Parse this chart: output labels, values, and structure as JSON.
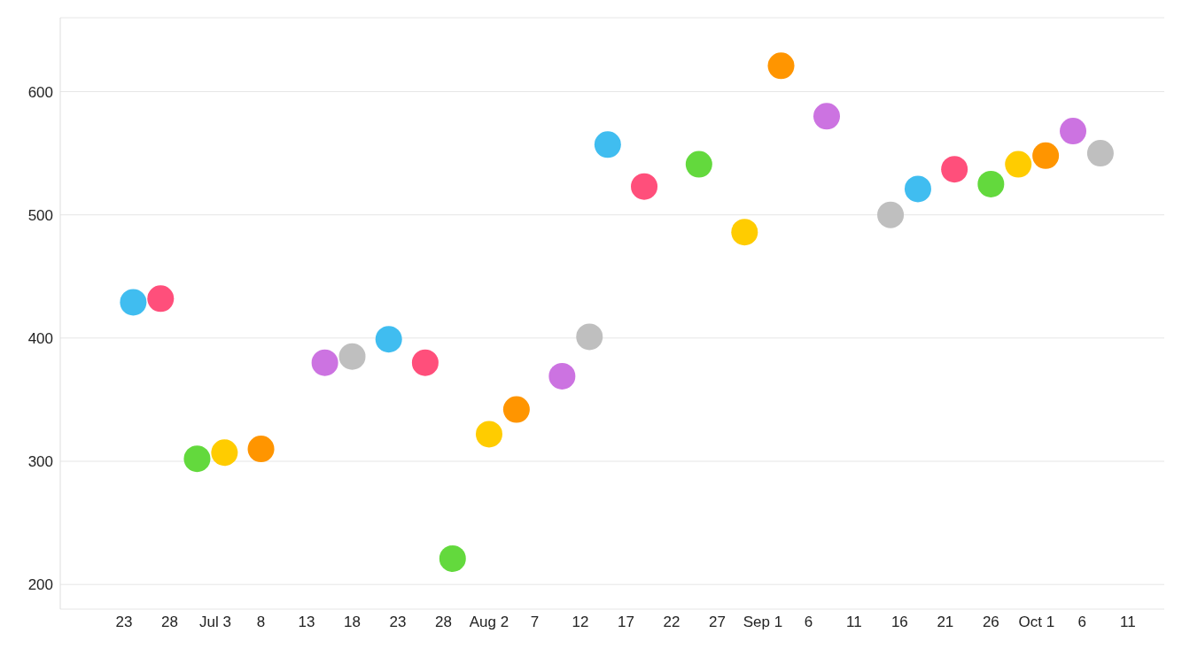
{
  "chart_data": {
    "type": "scatter",
    "marker": "circle",
    "grid": "y",
    "x": [
      "--06-24",
      "--06-27",
      "--07-01",
      "--07-04",
      "--07-08",
      "--07-15",
      "--07-18",
      "--07-22",
      "--07-26",
      "--07-29",
      "--08-02",
      "--08-05",
      "--08-10",
      "--08-13",
      "--08-15",
      "--08-19",
      "--08-25",
      "--08-30",
      "--09-03",
      "--09-08",
      "--09-15",
      "--09-18",
      "--09-22",
      "--09-26",
      "--09-29",
      "--10-02",
      "--10-05",
      "--10-08"
    ],
    "values": [
      429,
      432,
      302,
      307,
      310,
      380,
      385,
      399,
      380,
      221,
      322,
      342,
      369,
      401,
      557,
      523,
      541,
      486,
      621,
      580,
      500,
      521,
      537,
      525,
      541,
      548,
      568,
      550
    ],
    "colors": [
      "#40bdf0",
      "#ff4f7b",
      "#63d93d",
      "#ffcc00",
      "#ff9500",
      "#cc73e1",
      "#bfbfbf",
      "#40bdf0",
      "#ff4f7b",
      "#63d93d",
      "#ffcc00",
      "#ff9500",
      "#cc73e1",
      "#bfbfbf",
      "#40bdf0",
      "#ff4f7b",
      "#63d93d",
      "#ffcc00",
      "#ff9500",
      "#cc73e1",
      "#bfbfbf",
      "#40bdf0",
      "#ff4f7b",
      "#63d93d",
      "#ffcc00",
      "#ff9500",
      "#cc73e1",
      "#bfbfbf"
    ],
    "xlim": [
      "--06-16",
      "--10-15"
    ],
    "xticks": [
      {
        "value": "--06-23",
        "label": "23"
      },
      {
        "value": "--06-28",
        "label": "28"
      },
      {
        "value": "--07-03",
        "label": "Jul 3"
      },
      {
        "value": "--07-08",
        "label": "8"
      },
      {
        "value": "--07-13",
        "label": "13"
      },
      {
        "value": "--07-18",
        "label": "18"
      },
      {
        "value": "--07-23",
        "label": "23"
      },
      {
        "value": "--07-28",
        "label": "28"
      },
      {
        "value": "--08-02",
        "label": "Aug 2"
      },
      {
        "value": "--08-07",
        "label": "7"
      },
      {
        "value": "--08-12",
        "label": "12"
      },
      {
        "value": "--08-17",
        "label": "17"
      },
      {
        "value": "--08-22",
        "label": "22"
      },
      {
        "value": "--08-27",
        "label": "27"
      },
      {
        "value": "--09-01",
        "label": "Sep 1"
      },
      {
        "value": "--09-06",
        "label": "6"
      },
      {
        "value": "--09-11",
        "label": "11"
      },
      {
        "value": "--09-16",
        "label": "16"
      },
      {
        "value": "--09-21",
        "label": "21"
      },
      {
        "value": "--09-26",
        "label": "26"
      },
      {
        "value": "--10-01",
        "label": "Oct 1"
      },
      {
        "value": "--10-06",
        "label": "6"
      },
      {
        "value": "--10-11",
        "label": "11"
      }
    ],
    "ylim": [
      180,
      660
    ],
    "yticks": [
      200,
      300,
      400,
      500,
      600
    ]
  }
}
